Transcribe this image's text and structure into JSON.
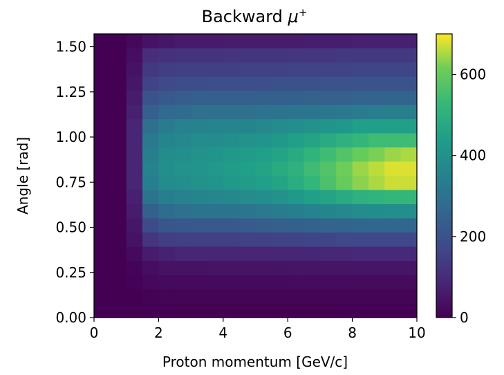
{
  "chart_data": {
    "type": "heatmap",
    "title": "Backward",
    "title_symbol": "μ",
    "title_superscript": "+",
    "xlabel": "Proton momentum [GeV/c]",
    "ylabel": "Angle [rad]",
    "xlim": [
      0,
      10
    ],
    "ylim": [
      0,
      1.571
    ],
    "xticks": [
      "0",
      "2",
      "4",
      "6",
      "8",
      "10"
    ],
    "yticks": [
      "0.00",
      "0.25",
      "0.50",
      "0.75",
      "1.00",
      "1.25",
      "1.50"
    ],
    "colorbar": {
      "range": [
        0,
        700
      ],
      "ticks": [
        "0",
        "200",
        "400",
        "600"
      ],
      "colormap": "viridis"
    },
    "x_bins": 20,
    "y_bins": 20,
    "x_bin_width": 0.5,
    "y_bin_width": 0.0785,
    "z": [
      [
        0,
        0,
        15,
        40,
        50,
        55,
        55,
        55,
        60,
        60,
        60,
        60,
        60,
        65,
        65,
        65,
        70,
        70,
        70,
        70
      ],
      [
        0,
        0,
        30,
        100,
        110,
        115,
        115,
        115,
        120,
        120,
        120,
        120,
        125,
        125,
        125,
        130,
        130,
        130,
        130,
        130
      ],
      [
        0,
        0,
        40,
        130,
        145,
        150,
        150,
        150,
        150,
        155,
        155,
        155,
        160,
        160,
        160,
        160,
        165,
        165,
        165,
        165
      ],
      [
        0,
        0,
        50,
        160,
        175,
        185,
        185,
        190,
        190,
        190,
        190,
        195,
        195,
        195,
        200,
        200,
        200,
        200,
        200,
        200
      ],
      [
        0,
        0,
        60,
        200,
        220,
        230,
        235,
        235,
        235,
        235,
        240,
        240,
        240,
        245,
        245,
        245,
        250,
        250,
        250,
        250
      ],
      [
        0,
        0,
        70,
        240,
        270,
        280,
        290,
        290,
        290,
        290,
        295,
        300,
        305,
        310,
        315,
        320,
        330,
        335,
        340,
        340
      ],
      [
        0,
        0,
        80,
        290,
        330,
        345,
        350,
        355,
        355,
        360,
        370,
        380,
        390,
        400,
        410,
        420,
        440,
        440,
        440,
        440
      ],
      [
        0,
        0,
        80,
        320,
        360,
        370,
        380,
        380,
        390,
        400,
        410,
        420,
        440,
        460,
        480,
        500,
        520,
        540,
        540,
        540
      ],
      [
        0,
        0,
        80,
        340,
        380,
        390,
        400,
        410,
        420,
        430,
        440,
        460,
        480,
        510,
        540,
        570,
        600,
        620,
        640,
        650
      ],
      [
        0,
        0,
        80,
        350,
        390,
        400,
        410,
        420,
        430,
        440,
        460,
        480,
        500,
        540,
        570,
        610,
        640,
        660,
        680,
        680
      ],
      [
        0,
        0,
        80,
        340,
        380,
        390,
        400,
        410,
        420,
        430,
        440,
        460,
        490,
        520,
        560,
        600,
        630,
        650,
        670,
        670
      ],
      [
        0,
        0,
        70,
        300,
        340,
        350,
        360,
        365,
        370,
        380,
        390,
        400,
        420,
        440,
        460,
        480,
        500,
        510,
        520,
        520
      ],
      [
        0,
        0,
        60,
        240,
        280,
        290,
        300,
        300,
        300,
        310,
        320,
        330,
        340,
        350,
        360,
        370,
        380,
        385,
        390,
        390
      ],
      [
        0,
        0,
        50,
        180,
        210,
        215,
        220,
        220,
        220,
        225,
        230,
        235,
        240,
        245,
        250,
        255,
        260,
        260,
        260,
        260
      ],
      [
        0,
        0,
        40,
        120,
        145,
        150,
        150,
        150,
        150,
        155,
        155,
        160,
        160,
        165,
        165,
        170,
        170,
        170,
        170,
        170
      ],
      [
        0,
        0,
        20,
        60,
        75,
        80,
        80,
        80,
        80,
        80,
        80,
        82,
        82,
        84,
        85,
        86,
        88,
        88,
        88,
        88
      ],
      [
        0,
        0,
        10,
        30,
        40,
        40,
        40,
        42,
        42,
        42,
        42,
        42,
        44,
        44,
        44,
        44,
        45,
        45,
        45,
        45
      ],
      [
        0,
        0,
        5,
        15,
        20,
        20,
        20,
        20,
        20,
        20,
        20,
        20,
        22,
        22,
        22,
        22,
        22,
        22,
        22,
        22
      ],
      [
        0,
        0,
        0,
        5,
        8,
        8,
        8,
        8,
        8,
        8,
        8,
        8,
        8,
        8,
        8,
        8,
        8,
        8,
        8,
        8
      ],
      [
        0,
        0,
        0,
        0,
        0,
        0,
        0,
        0,
        0,
        0,
        0,
        0,
        0,
        0,
        0,
        0,
        0,
        0,
        0,
        0
      ]
    ]
  }
}
